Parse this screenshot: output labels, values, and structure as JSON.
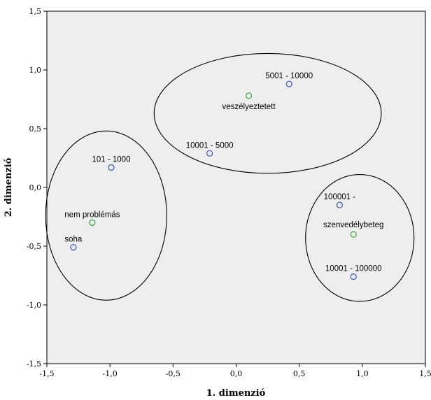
{
  "chart_data": {
    "type": "scatter",
    "title": "",
    "xlabel": "1. dimenzió",
    "ylabel": "2. dimenzió",
    "xlim": [
      -1.5,
      1.5
    ],
    "ylim": [
      -1.5,
      1.5
    ],
    "xticks": [
      "-1,5",
      "-1,0",
      "-0,5",
      "0,0",
      "0,5",
      "1,0",
      "1,5"
    ],
    "yticks": [
      "1,5",
      "1,0",
      "0,5",
      "0,0",
      "-0,5",
      "-1,0",
      "-1,5"
    ],
    "grid": false,
    "background": "#eeeeee",
    "points": [
      {
        "label": "5001 - 10000",
        "x": 0.42,
        "y": 0.88,
        "color": "#4a5ec8"
      },
      {
        "label": "veszélyeztetett",
        "x": 0.1,
        "y": 0.78,
        "color": "#3cb043"
      },
      {
        "label": "10001 - 5000",
        "x": -0.21,
        "y": 0.29,
        "color": "#4a5ec8"
      },
      {
        "label": "101 - 1000",
        "x": -0.99,
        "y": 0.17,
        "color": "#4a5ec8"
      },
      {
        "label": "nem problémás",
        "x": -1.14,
        "y": -0.3,
        "color": "#3cb043"
      },
      {
        "label": "soha",
        "x": -1.29,
        "y": -0.51,
        "color": "#4a5ec8"
      },
      {
        "label": "100001 -",
        "x": 0.82,
        "y": -0.15,
        "color": "#4a5ec8"
      },
      {
        "label": "szenvedélybeteg",
        "x": 0.93,
        "y": -0.4,
        "color": "#3cb043"
      },
      {
        "label": "10001 - 100000",
        "x": 0.93,
        "y": -0.76,
        "color": "#4a5ec8"
      }
    ],
    "ellipses": [
      {
        "name": "cluster-top",
        "cx": 0.25,
        "cy": 0.63,
        "rx": 0.9,
        "ry": 0.51
      },
      {
        "name": "cluster-left",
        "cx": -1.03,
        "cy": -0.24,
        "rx": 0.48,
        "ry": 0.72
      },
      {
        "name": "cluster-right",
        "cx": 0.98,
        "cy": -0.43,
        "rx": 0.43,
        "ry": 0.54
      }
    ]
  }
}
